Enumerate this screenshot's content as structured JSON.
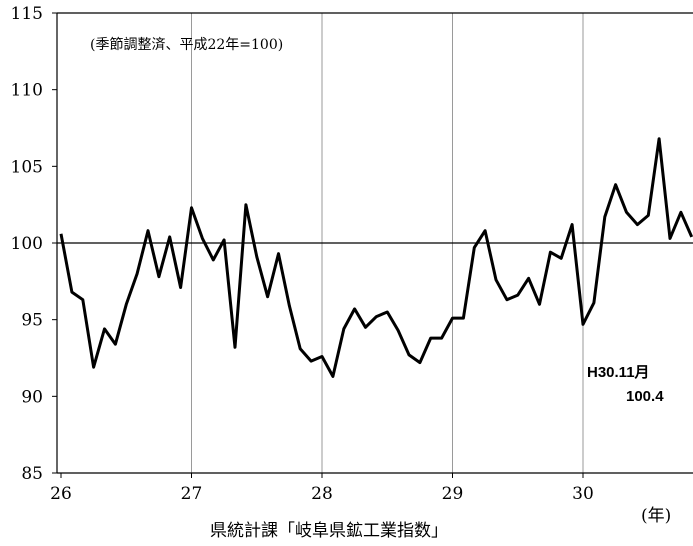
{
  "chart_data": {
    "type": "line",
    "title": "",
    "subtitle": "(季節調整済、平成22年=100)",
    "xlabel": "(年)",
    "ylabel": "",
    "source": "県統計課「岐阜県鉱工業指数」",
    "annotation": {
      "label": "H30.11月",
      "value_text": "100.4"
    },
    "ylim": [
      85,
      115
    ],
    "yticks": [
      85,
      90,
      95,
      100,
      105,
      110,
      115
    ],
    "xlim": [
      26,
      30.9167
    ],
    "xticks": [
      26,
      27,
      28,
      29,
      30
    ],
    "xtick_labels": [
      "26",
      "27",
      "28",
      "29",
      "30"
    ],
    "reference_line": 100,
    "vertical_gridlines": [
      27,
      28,
      29,
      30
    ],
    "series": [
      {
        "values": [
          100.6,
          96.8,
          96.3,
          91.9,
          94.4,
          93.4,
          96.0,
          98.0,
          100.8,
          97.8,
          100.4,
          97.1,
          102.3,
          100.3,
          98.9,
          100.2,
          93.2,
          102.5,
          99.1,
          96.5,
          99.3,
          95.9,
          93.1,
          92.3,
          92.6,
          91.3,
          94.4,
          95.7,
          94.5,
          95.2,
          95.5,
          94.3,
          92.7,
          92.2,
          93.8,
          93.8,
          95.1,
          95.1,
          99.7,
          100.8,
          97.6,
          96.3,
          96.6,
          97.7,
          96.0,
          99.4,
          99.0,
          101.2,
          94.7,
          96.1,
          101.7,
          103.8,
          102.0,
          101.2,
          101.8,
          106.8,
          100.3,
          102.0,
          100.4
        ]
      }
    ]
  },
  "colors": {
    "line": "#000000",
    "grid": "#9a9a9a",
    "background": "#ffffff"
  }
}
